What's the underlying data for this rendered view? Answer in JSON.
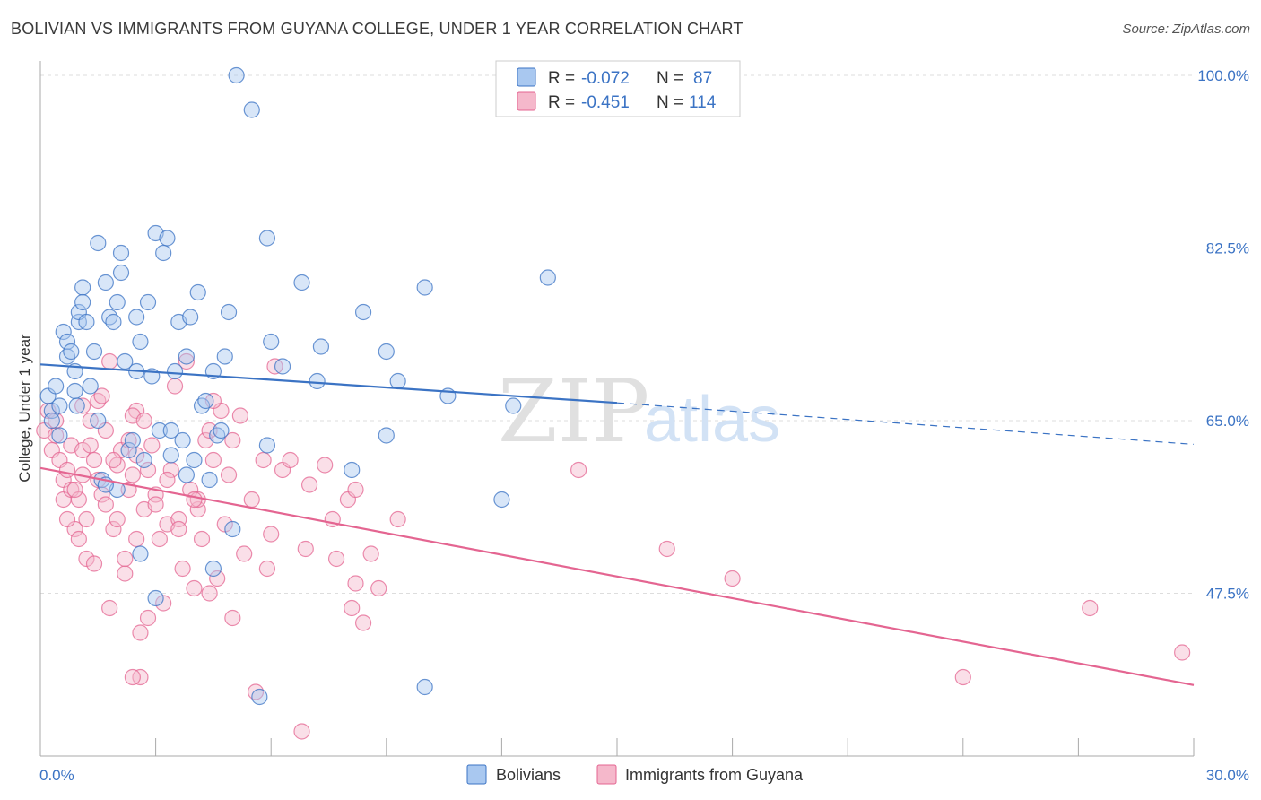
{
  "title": "BOLIVIAN VS IMMIGRANTS FROM GUYANA COLLEGE, UNDER 1 YEAR CORRELATION CHART",
  "source": "Source: ZipAtlas.com",
  "colors": {
    "blue": "#3b73c4",
    "blue_fill": "#a9c8f0",
    "pink": "#e46591",
    "pink_fill": "#f5b8cb",
    "grid": "#dddddd"
  },
  "legend": {
    "r_label": "R =",
    "n_label": "N =",
    "rows": [
      {
        "r": "-0.072",
        "n": "87"
      },
      {
        "r": "-0.451",
        "n": "114"
      }
    ]
  },
  "watermark": {
    "zip": "ZIP",
    "atlas": "atlas"
  },
  "chart_data": {
    "type": "scatter",
    "title": "BOLIVIAN VS IMMIGRANTS FROM GUYANA COLLEGE, UNDER 1 YEAR CORRELATION CHART",
    "xlabel": "",
    "ylabel": "College, Under 1 year",
    "xlim": [
      0,
      30
    ],
    "ylim": [
      31,
      102
    ],
    "x_tick_labels": [
      "0.0%",
      "30.0%"
    ],
    "y_ticks": [
      47.5,
      65.0,
      82.5,
      100.0
    ],
    "y_tick_labels": [
      "47.5%",
      "65.0%",
      "82.5%",
      "100.0%"
    ],
    "grid": true,
    "legend_position": "bottom",
    "series": [
      {
        "name": "Bolivians",
        "color": "#3b73c4",
        "trend": {
          "x0": 0,
          "y0": 70.7,
          "x1": 15,
          "y1": 66.8,
          "dash_to_x": 30,
          "dash_to_y": 62.6
        },
        "points": [
          [
            0.2,
            67.5
          ],
          [
            0.3,
            66
          ],
          [
            0.3,
            65
          ],
          [
            0.4,
            68.5
          ],
          [
            0.5,
            66.5
          ],
          [
            0.5,
            63.5
          ],
          [
            0.6,
            74
          ],
          [
            0.7,
            73
          ],
          [
            0.7,
            71.5
          ],
          [
            0.8,
            72
          ],
          [
            0.9,
            70
          ],
          [
            0.9,
            68
          ],
          [
            0.95,
            66.5
          ],
          [
            1.0,
            75
          ],
          [
            1.0,
            76
          ],
          [
            1.1,
            78.5
          ],
          [
            1.1,
            77
          ],
          [
            1.2,
            75
          ],
          [
            1.3,
            68.5
          ],
          [
            1.4,
            72
          ],
          [
            1.5,
            83
          ],
          [
            1.5,
            65
          ],
          [
            1.6,
            59
          ],
          [
            1.7,
            79
          ],
          [
            1.8,
            75.5
          ],
          [
            1.9,
            75
          ],
          [
            2.0,
            77
          ],
          [
            2.1,
            80
          ],
          [
            2.1,
            82
          ],
          [
            2.2,
            71
          ],
          [
            2.3,
            62
          ],
          [
            2.4,
            63
          ],
          [
            2.5,
            75.5
          ],
          [
            2.5,
            70
          ],
          [
            2.6,
            73
          ],
          [
            2.7,
            61
          ],
          [
            2.8,
            77
          ],
          [
            2.9,
            69.5
          ],
          [
            3.0,
            84
          ],
          [
            3.1,
            64
          ],
          [
            3.2,
            82
          ],
          [
            3.3,
            83.5
          ],
          [
            3.4,
            64
          ],
          [
            3.5,
            70
          ],
          [
            3.6,
            75
          ],
          [
            3.7,
            63
          ],
          [
            3.8,
            71.5
          ],
          [
            3.9,
            75.5
          ],
          [
            4.0,
            61
          ],
          [
            4.1,
            78
          ],
          [
            4.2,
            66.5
          ],
          [
            4.3,
            67
          ],
          [
            4.4,
            59
          ],
          [
            4.5,
            70
          ],
          [
            4.6,
            63.5
          ],
          [
            4.7,
            64
          ],
          [
            4.8,
            71.5
          ],
          [
            4.9,
            76
          ],
          [
            5.0,
            54
          ],
          [
            5.1,
            100
          ],
          [
            5.5,
            96.5
          ],
          [
            5.7,
            37
          ],
          [
            5.9,
            83.5
          ],
          [
            6.0,
            73
          ],
          [
            5.9,
            62.5
          ],
          [
            6.3,
            70.5
          ],
          [
            6.8,
            79
          ],
          [
            7.2,
            69
          ],
          [
            7.3,
            72.5
          ],
          [
            8.1,
            60
          ],
          [
            8.4,
            76
          ],
          [
            9.0,
            72
          ],
          [
            9.0,
            63.5
          ],
          [
            9.3,
            69
          ],
          [
            10.0,
            78.5
          ],
          [
            10.0,
            38
          ],
          [
            10.6,
            67.5
          ],
          [
            12.3,
            66.5
          ],
          [
            13.2,
            79.5
          ],
          [
            12.0,
            57
          ],
          [
            3.0,
            47
          ],
          [
            4.5,
            50
          ],
          [
            2.6,
            51.5
          ],
          [
            3.4,
            61.5
          ],
          [
            2.0,
            58
          ],
          [
            3.8,
            59.5
          ],
          [
            1.7,
            58.5
          ]
        ]
      },
      {
        "name": "Immigrants from Guyana",
        "color": "#e46591",
        "trend": {
          "x0": 0,
          "y0": 60.2,
          "x1": 30,
          "y1": 38.2
        },
        "points": [
          [
            0.1,
            64
          ],
          [
            0.2,
            66
          ],
          [
            0.3,
            62
          ],
          [
            0.4,
            63.5
          ],
          [
            0.5,
            61
          ],
          [
            0.6,
            57
          ],
          [
            0.6,
            59
          ],
          [
            0.7,
            60
          ],
          [
            0.8,
            58
          ],
          [
            0.8,
            62.5
          ],
          [
            0.9,
            54
          ],
          [
            1.0,
            57
          ],
          [
            1.0,
            53
          ],
          [
            1.1,
            59.5
          ],
          [
            1.1,
            62
          ],
          [
            1.2,
            55
          ],
          [
            1.2,
            51
          ],
          [
            1.3,
            65
          ],
          [
            1.4,
            61
          ],
          [
            1.4,
            50.5
          ],
          [
            1.5,
            67
          ],
          [
            1.5,
            59
          ],
          [
            1.6,
            57.5
          ],
          [
            1.7,
            64
          ],
          [
            1.7,
            56.5
          ],
          [
            1.8,
            46
          ],
          [
            1.9,
            54
          ],
          [
            2.0,
            60.5
          ],
          [
            2.0,
            55
          ],
          [
            2.1,
            62
          ],
          [
            2.2,
            49.5
          ],
          [
            2.3,
            58
          ],
          [
            2.3,
            63
          ],
          [
            2.4,
            59.5
          ],
          [
            2.5,
            66
          ],
          [
            2.5,
            53
          ],
          [
            2.6,
            43.5
          ],
          [
            2.6,
            39
          ],
          [
            2.7,
            56
          ],
          [
            2.8,
            60
          ],
          [
            2.9,
            62.5
          ],
          [
            3.0,
            57.5
          ],
          [
            3.1,
            53
          ],
          [
            3.2,
            46.5
          ],
          [
            3.3,
            54.5
          ],
          [
            3.4,
            60
          ],
          [
            3.5,
            68.5
          ],
          [
            3.6,
            55
          ],
          [
            3.7,
            50
          ],
          [
            3.8,
            71
          ],
          [
            3.9,
            58
          ],
          [
            4.0,
            48
          ],
          [
            4.1,
            56
          ],
          [
            4.2,
            53
          ],
          [
            4.3,
            63
          ],
          [
            4.4,
            47.5
          ],
          [
            4.5,
            61
          ],
          [
            4.6,
            49
          ],
          [
            4.7,
            66
          ],
          [
            4.8,
            54.5
          ],
          [
            4.9,
            59.5
          ],
          [
            5.0,
            45
          ],
          [
            5.2,
            65.5
          ],
          [
            5.3,
            51.5
          ],
          [
            5.5,
            57
          ],
          [
            5.6,
            37.5
          ],
          [
            5.8,
            61
          ],
          [
            5.9,
            50
          ],
          [
            6.0,
            53.5
          ],
          [
            6.1,
            70.5
          ],
          [
            6.3,
            60
          ],
          [
            6.5,
            61
          ],
          [
            6.8,
            33.5
          ],
          [
            6.9,
            52
          ],
          [
            7.0,
            58.5
          ],
          [
            7.4,
            60.5
          ],
          [
            7.6,
            55
          ],
          [
            7.7,
            51
          ],
          [
            8.0,
            57
          ],
          [
            8.2,
            58
          ],
          [
            8.1,
            46
          ],
          [
            8.2,
            48.5
          ],
          [
            8.4,
            44.5
          ],
          [
            8.6,
            51.5
          ],
          [
            8.8,
            48
          ],
          [
            9.3,
            55
          ],
          [
            0.4,
            65
          ],
          [
            1.6,
            67.5
          ],
          [
            2.4,
            65.5
          ],
          [
            3.0,
            56.5
          ],
          [
            3.6,
            54
          ],
          [
            4.1,
            57
          ],
          [
            1.3,
            62.5
          ],
          [
            0.7,
            55
          ],
          [
            2.2,
            51
          ],
          [
            3.3,
            59
          ],
          [
            4.4,
            64
          ],
          [
            1.9,
            61
          ],
          [
            2.8,
            45
          ],
          [
            1.1,
            66.5
          ],
          [
            4.5,
            67
          ],
          [
            0.9,
            58
          ],
          [
            5.0,
            63
          ],
          [
            2.7,
            65
          ],
          [
            2.4,
            39
          ],
          [
            4.0,
            57
          ],
          [
            14.0,
            60
          ],
          [
            16.3,
            52
          ],
          [
            18.0,
            49
          ],
          [
            24.0,
            39
          ],
          [
            27.3,
            46
          ],
          [
            29.7,
            41.5
          ],
          [
            1.8,
            71
          ],
          [
            2.5,
            61.5
          ]
        ]
      }
    ]
  },
  "bottom_legend": [
    {
      "label": "Bolivians"
    },
    {
      "label": "Immigrants from Guyana"
    }
  ]
}
